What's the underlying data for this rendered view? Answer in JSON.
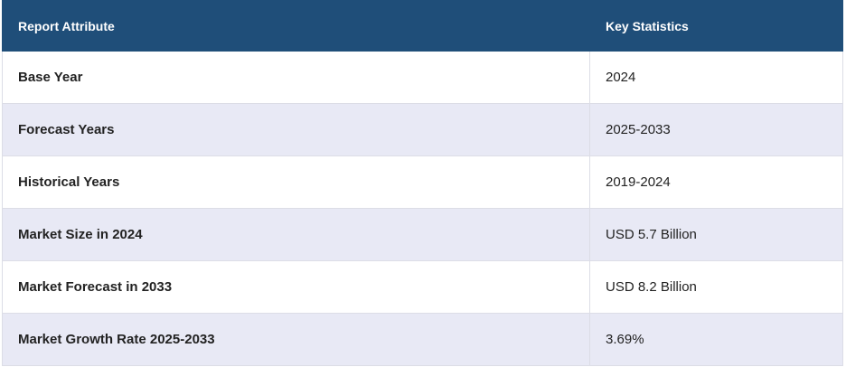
{
  "table": {
    "header": [
      "Report Attribute",
      "Key Statistics"
    ],
    "rows": [
      [
        "Base Year",
        "2024"
      ],
      [
        "Forecast Years",
        "2025-2033"
      ],
      [
        "Historical Years",
        "2019-2024"
      ],
      [
        "Market Size in 2024",
        "USD 5.7 Billion"
      ],
      [
        "Market Forecast in 2033",
        "USD 8.2 Billion"
      ],
      [
        "Market Growth Rate 2025-2033",
        "3.69%"
      ]
    ]
  }
}
